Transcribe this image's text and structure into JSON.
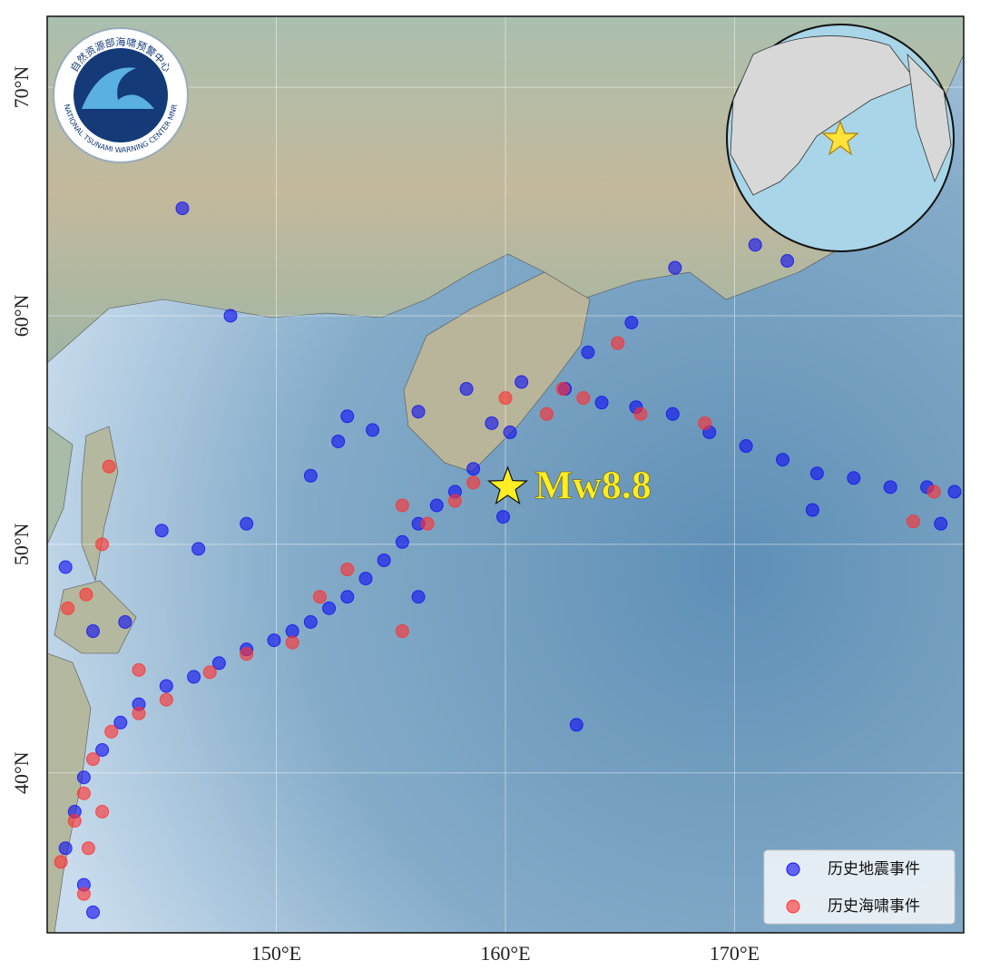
{
  "chart_data": {
    "type": "scatter",
    "xlim": [
      140,
      180
    ],
    "ylim": [
      33,
      73.1
    ],
    "xticks": [
      {
        "value": 150,
        "label": "150°E"
      },
      {
        "value": 160,
        "label": "160°E"
      },
      {
        "value": 170,
        "label": "170°E"
      }
    ],
    "yticks": [
      {
        "value": 40,
        "label": "40°N"
      },
      {
        "value": 50,
        "label": "50°N"
      },
      {
        "value": 60,
        "label": "60°N"
      },
      {
        "value": 70,
        "label": "70°N"
      }
    ],
    "grid": true,
    "legend": "lower right",
    "series": [
      {
        "name": "历史地震事件",
        "color": "#1010f0",
        "x": [
          145.9,
          148.0,
          170.9,
          172.3,
          167.4,
          165.5,
          163.6,
          162.6,
          160.7,
          164.2,
          165.7,
          167.3,
          168.9,
          170.5,
          172.1,
          173.6,
          175.2,
          176.8,
          178.4,
          179.6,
          179.0,
          173.4,
          163.1,
          159.4,
          160.2,
          158.6,
          157.8,
          157.0,
          156.2,
          155.5,
          154.7,
          153.9,
          153.1,
          152.3,
          151.5,
          150.7,
          149.9,
          148.7,
          147.5,
          146.4,
          145.2,
          144.0,
          143.2,
          142.4,
          141.6,
          141.2,
          140.8,
          141.6,
          142.0,
          153.1,
          152.7,
          151.5,
          154.2,
          156.2,
          148.7,
          146.6,
          145.0,
          140.8,
          143.4,
          142.0,
          159.9,
          158.3,
          156.2
        ],
        "y": [
          64.7,
          60.0,
          63.1,
          62.4,
          62.1,
          59.7,
          58.4,
          56.8,
          57.1,
          56.2,
          56.0,
          55.7,
          54.9,
          54.3,
          53.7,
          53.1,
          52.9,
          52.5,
          52.5,
          52.3,
          50.9,
          51.5,
          42.1,
          55.3,
          54.9,
          53.3,
          52.3,
          51.7,
          50.9,
          50.1,
          49.3,
          48.5,
          47.7,
          47.2,
          46.6,
          46.2,
          45.8,
          45.4,
          44.8,
          44.2,
          43.8,
          43.0,
          42.2,
          41.0,
          39.8,
          38.3,
          36.7,
          35.1,
          33.9,
          55.6,
          54.5,
          53.0,
          55.0,
          55.8,
          50.9,
          49.8,
          50.6,
          49.0,
          46.6,
          46.2,
          51.2,
          56.8,
          47.7
        ]
      },
      {
        "name": "历史海啸事件",
        "color": "#ff3030",
        "x": [
          142.7,
          142.4,
          140.9,
          141.7,
          164.9,
          162.5,
          163.4,
          165.9,
          168.7,
          177.8,
          178.7,
          160.0,
          161.8,
          158.6,
          157.8,
          156.6,
          155.5,
          153.1,
          151.9,
          150.7,
          148.7,
          147.1,
          145.2,
          144.0,
          142.8,
          142.0,
          141.6,
          141.2,
          142.4,
          141.8,
          140.6,
          141.6,
          144.0,
          155.5
        ],
        "y": [
          53.4,
          50.0,
          47.2,
          47.8,
          58.8,
          56.8,
          56.4,
          55.7,
          55.3,
          51.0,
          52.3,
          56.4,
          55.7,
          52.7,
          51.9,
          50.9,
          51.7,
          48.9,
          47.7,
          45.7,
          45.2,
          44.4,
          43.2,
          42.6,
          41.8,
          40.6,
          39.1,
          37.9,
          38.3,
          36.7,
          36.1,
          34.7,
          44.5,
          46.2
        ]
      }
    ],
    "epicenter": {
      "x": 160.1,
      "y": 52.5,
      "label": "Mw8.8",
      "color": "#ffee22"
    }
  },
  "logo": {
    "name_cn": "自然资源部海啸预警中心",
    "name_en": "NATIONAL TSUNAMI WARNING CENTER MNR"
  }
}
